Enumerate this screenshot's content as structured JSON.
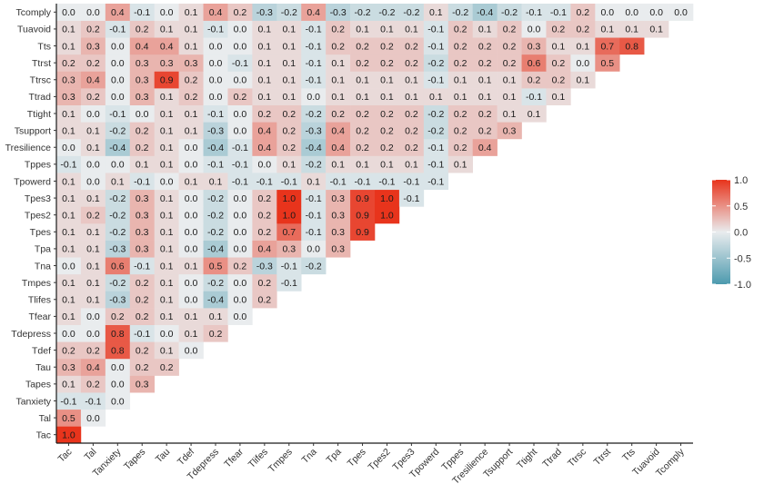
{
  "chart_data": {
    "type": "heatmap",
    "title": "",
    "xlabel": "",
    "ylabel": "",
    "variables": [
      "Tac",
      "Tal",
      "Tanxiety",
      "Tapes",
      "Tau",
      "Tdef",
      "Tdepress",
      "Tfear",
      "Tlifes",
      "Tmpes",
      "Tna",
      "Tpa",
      "Tpes",
      "Tpes2",
      "Tpes3",
      "Tpowerd",
      "Tppes",
      "Tresilience",
      "Tsupport",
      "Ttight",
      "Ttrad",
      "Ttrsc",
      "Ttrst",
      "Tts",
      "Tuavoid",
      "Tcomply"
    ],
    "rows": [
      [
        "1.0"
      ],
      [
        "0.5",
        "0.0"
      ],
      [
        "-0.1",
        "-0.1",
        "0.0"
      ],
      [
        "0.1",
        "0.2",
        "0.0",
        "0.3"
      ],
      [
        "0.3",
        "0.4",
        "0.0",
        "0.2",
        "0.2"
      ],
      [
        "0.2",
        "0.2",
        "0.8",
        "0.2",
        "0.1",
        "0.0"
      ],
      [
        "0.0",
        "0.0",
        "0.8",
        "-0.1",
        "0.0",
        "0.1",
        "0.2"
      ],
      [
        "0.1",
        "0.0",
        "0.2",
        "0.2",
        "0.1",
        "0.1",
        "0.1",
        "0.0"
      ],
      [
        "0.1",
        "0.1",
        "-0.3",
        "0.2",
        "0.1",
        "0.0",
        "-0.4",
        "0.0",
        "0.2"
      ],
      [
        "0.1",
        "0.1",
        "-0.2",
        "0.2",
        "0.1",
        "0.0",
        "-0.2",
        "0.0",
        "0.2",
        "-0.1"
      ],
      [
        "0.0",
        "0.1",
        "0.6",
        "-0.1",
        "0.1",
        "0.1",
        "0.5",
        "0.2",
        "-0.3",
        "-0.1",
        "-0.2"
      ],
      [
        "0.1",
        "0.1",
        "-0.3",
        "0.3",
        "0.1",
        "0.0",
        "-0.4",
        "0.0",
        "0.4",
        "0.3",
        "0.0",
        "0.3"
      ],
      [
        "0.1",
        "0.1",
        "-0.2",
        "0.3",
        "0.1",
        "0.0",
        "-0.2",
        "0.0",
        "0.2",
        "0.7",
        "-0.1",
        "0.3",
        "0.9"
      ],
      [
        "0.1",
        "0.2",
        "-0.2",
        "0.3",
        "0.1",
        "0.0",
        "-0.2",
        "0.0",
        "0.2",
        "1.0",
        "-0.1",
        "0.3",
        "0.9",
        "1.0"
      ],
      [
        "0.1",
        "0.1",
        "-0.2",
        "0.3",
        "0.1",
        "0.0",
        "-0.2",
        "0.0",
        "0.2",
        "1.0",
        "-0.1",
        "0.3",
        "0.9",
        "1.0",
        "-0.1"
      ],
      [
        "0.1",
        "0.0",
        "0.1",
        "-0.1",
        "0.0",
        "0.1",
        "0.1",
        "-0.1",
        "-0.1",
        "-0.1",
        "0.1",
        "-0.1",
        "-0.1",
        "-0.1",
        "-0.1",
        "-0.1"
      ],
      [
        "-0.1",
        "0.0",
        "0.0",
        "0.1",
        "0.1",
        "0.0",
        "-0.1",
        "-0.1",
        "0.0",
        "0.1",
        "-0.2",
        "0.1",
        "0.1",
        "0.1",
        "0.1",
        "-0.1",
        "0.1"
      ],
      [
        "0.0",
        "0.1",
        "-0.4",
        "0.2",
        "0.1",
        "0.0",
        "-0.4",
        "-0.1",
        "0.4",
        "0.2",
        "-0.4",
        "0.4",
        "0.2",
        "0.2",
        "0.2",
        "-0.1",
        "0.2",
        "0.4"
      ],
      [
        "0.1",
        "0.1",
        "-0.2",
        "0.2",
        "0.1",
        "0.1",
        "-0.3",
        "0.0",
        "0.4",
        "0.2",
        "-0.3",
        "0.4",
        "0.2",
        "0.2",
        "0.2",
        "-0.2",
        "0.2",
        "0.2",
        "0.3"
      ],
      [
        "0.1",
        "0.0",
        "-0.1",
        "0.0",
        "0.1",
        "0.1",
        "-0.1",
        "0.0",
        "0.2",
        "0.2",
        "-0.2",
        "0.2",
        "0.2",
        "0.2",
        "0.2",
        "-0.2",
        "0.2",
        "0.2",
        "0.1",
        "0.1"
      ],
      [
        "0.3",
        "0.2",
        "0.0",
        "0.3",
        "0.1",
        "0.2",
        "0.0",
        "0.2",
        "0.1",
        "0.1",
        "0.0",
        "0.1",
        "0.1",
        "0.1",
        "0.1",
        "0.1",
        "0.1",
        "0.1",
        "0.1",
        "-0.1",
        "0.1"
      ],
      [
        "0.3",
        "0.4",
        "0.0",
        "0.3",
        "0.9",
        "0.2",
        "0.0",
        "0.0",
        "0.1",
        "0.1",
        "-0.1",
        "0.1",
        "0.1",
        "0.1",
        "0.1",
        "-0.1",
        "0.1",
        "0.1",
        "0.1",
        "0.2",
        "0.2",
        "0.1"
      ],
      [
        "0.2",
        "0.2",
        "0.0",
        "0.3",
        "0.3",
        "0.3",
        "0.0",
        "-0.1",
        "0.1",
        "0.1",
        "-0.1",
        "0.1",
        "0.2",
        "0.2",
        "0.2",
        "-0.2",
        "0.2",
        "0.2",
        "0.2",
        "0.6",
        "0.2",
        "0.0",
        "0.5"
      ],
      [
        "0.1",
        "0.3",
        "0.0",
        "0.4",
        "0.4",
        "0.1",
        "0.0",
        "0.0",
        "0.1",
        "0.1",
        "-0.1",
        "0.2",
        "0.2",
        "0.2",
        "0.2",
        "-0.1",
        "0.2",
        "0.2",
        "0.2",
        "0.3",
        "0.1",
        "0.1",
        "0.7",
        "0.8"
      ],
      [
        "0.1",
        "0.2",
        "-0.1",
        "0.2",
        "0.1",
        "0.1",
        "-0.1",
        "0.0",
        "0.1",
        "0.1",
        "-0.1",
        "0.2",
        "0.1",
        "0.1",
        "0.1",
        "-0.1",
        "0.2",
        "0.1",
        "0.2",
        "0.0",
        "0.2",
        "0.2",
        "0.1",
        "0.1",
        "0.1"
      ],
      [
        "0.0",
        "0.0",
        "0.4",
        "-0.1",
        "0.0",
        "0.1",
        "0.4",
        "0.2",
        "-0.3",
        "-0.2",
        "0.4",
        "-0.3",
        "-0.2",
        "-0.2",
        "-0.2",
        "0.1",
        "-0.2",
        "-0.4",
        "-0.2",
        "-0.1",
        "-0.1",
        "0.2",
        "0.0",
        "0.0",
        "0.0",
        "0.0"
      ]
    ],
    "legend": {
      "ticks": [
        "1.0",
        "0.5",
        "0.0",
        "-0.5",
        "-1.0"
      ],
      "range": [
        -1.0,
        1.0
      ],
      "placement": "right"
    },
    "colors": {
      "positive": "#e8341c",
      "neutral": "#e9ecee",
      "negative": "#4c9aae"
    }
  }
}
